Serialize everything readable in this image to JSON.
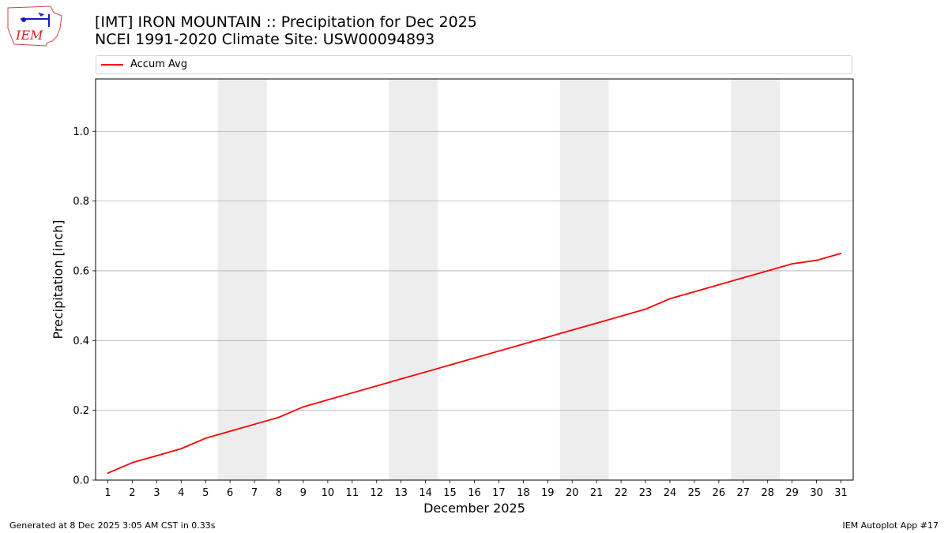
{
  "logo": {
    "text": "IEM"
  },
  "title": {
    "line1": "[IMT] IRON MOUNTAIN :: Precipitation for Dec 2025",
    "line2": "NCEI 1991-2020 Climate Site: USW00094893"
  },
  "footer": {
    "left": "Generated at 8 Dec 2025 3:05 AM CST in 0.33s",
    "right": "IEM Autoplot App #17"
  },
  "colors": {
    "line": "#ff0000",
    "weekend_band": "#ededed",
    "grid": "#b0b0b0"
  },
  "chart_data": {
    "type": "line",
    "xlabel": "December 2025",
    "ylabel": "Precipitation [inch]",
    "x": [
      1,
      2,
      3,
      4,
      5,
      6,
      7,
      8,
      9,
      10,
      11,
      12,
      13,
      14,
      15,
      16,
      17,
      18,
      19,
      20,
      21,
      22,
      23,
      24,
      25,
      26,
      27,
      28,
      29,
      30,
      31
    ],
    "series": [
      {
        "name": "Accum Avg",
        "values": [
          0.02,
          0.05,
          0.07,
          0.09,
          0.12,
          0.14,
          0.16,
          0.18,
          0.21,
          0.23,
          0.25,
          0.27,
          0.29,
          0.31,
          0.33,
          0.35,
          0.37,
          0.39,
          0.41,
          0.43,
          0.45,
          0.47,
          0.49,
          0.52,
          0.54,
          0.56,
          0.58,
          0.6,
          0.62,
          0.63,
          0.65
        ]
      }
    ],
    "xlim": [
      0.5,
      31.5
    ],
    "ylim": [
      0,
      1.15
    ],
    "yticks": [
      "0.0",
      "0.2",
      "0.4",
      "0.6",
      "0.8",
      "1.0"
    ],
    "shaded_days": [
      [
        6,
        7
      ],
      [
        13,
        14
      ],
      [
        20,
        21
      ],
      [
        27,
        28
      ]
    ],
    "grid": "horizontal",
    "legend": "top"
  }
}
